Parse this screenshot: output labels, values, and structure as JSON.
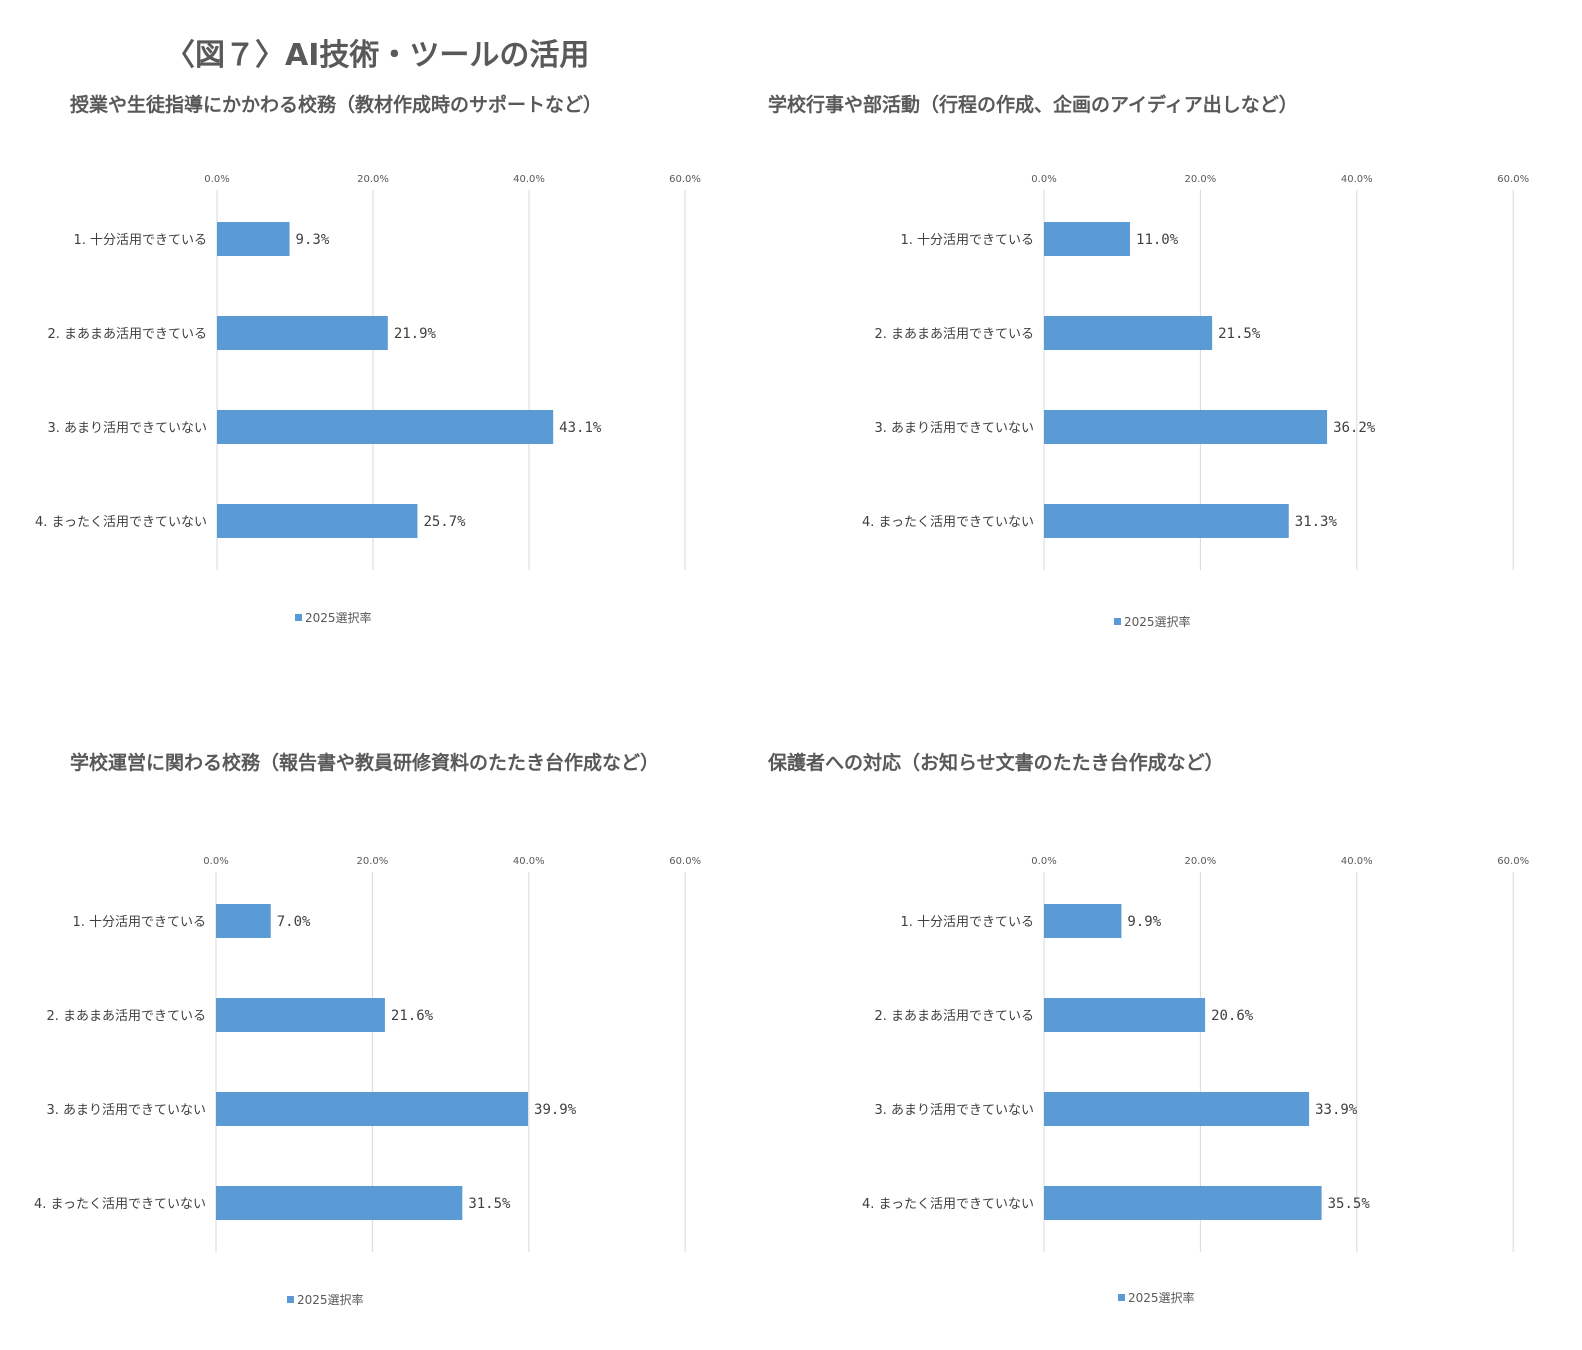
{
  "figure_title": "〈図７〉AI技術・ツールの活用",
  "colors": {
    "bar": "#5b9bd5",
    "grid": "#d9d9d9",
    "text": "#595959"
  },
  "chart_data": [
    {
      "type": "bar",
      "orientation": "horizontal",
      "title": "授業や生徒指導にかかわる校務（教材作成時のサポートなど）",
      "categories": [
        "1.  十分活用できている",
        "2.  まあまあ活用できている",
        "3.  あまり活用できていない",
        "4.  まったく活用できていない"
      ],
      "series": [
        {
          "name": "2025選択率",
          "values": [
            9.3,
            21.9,
            43.1,
            25.7
          ],
          "labels": [
            "9.3%",
            "21.9%",
            "43.1%",
            "25.7%"
          ]
        }
      ],
      "xticks": [
        "0.0%",
        "20.0%",
        "40.0%",
        "60.0%"
      ],
      "xlim": [
        0,
        60
      ],
      "grid": true,
      "legend_position": "bottom"
    },
    {
      "type": "bar",
      "orientation": "horizontal",
      "title": "学校行事や部活動（行程の作成、企画のアイディア出しなど）",
      "categories": [
        "1.  十分活用できている",
        "2.  まあまあ活用できている",
        "3.  あまり活用できていない",
        "4.  まったく活用できていない"
      ],
      "series": [
        {
          "name": "2025選択率",
          "values": [
            11.0,
            21.5,
            36.2,
            31.3
          ],
          "labels": [
            "11.0%",
            "21.5%",
            "36.2%",
            "31.3%"
          ]
        }
      ],
      "xticks": [
        "0.0%",
        "20.0%",
        "40.0%",
        "60.0%"
      ],
      "xlim": [
        0,
        60
      ],
      "grid": true,
      "legend_position": "bottom"
    },
    {
      "type": "bar",
      "orientation": "horizontal",
      "title": "学校運営に関わる校務（報告書や教員研修資料のたたき台作成など）",
      "categories": [
        "1.  十分活用できている",
        "2.  まあまあ活用できている",
        "3.  あまり活用できていない",
        "4.  まったく活用できていない"
      ],
      "series": [
        {
          "name": "2025選択率",
          "values": [
            7.0,
            21.6,
            39.9,
            31.5
          ],
          "labels": [
            "7.0%",
            "21.6%",
            "39.9%",
            "31.5%"
          ]
        }
      ],
      "xticks": [
        "0.0%",
        "20.0%",
        "40.0%",
        "60.0%"
      ],
      "xlim": [
        0,
        60
      ],
      "grid": true,
      "legend_position": "bottom"
    },
    {
      "type": "bar",
      "orientation": "horizontal",
      "title": "保護者への対応（お知らせ文書のたたき台作成など）",
      "categories": [
        "1.  十分活用できている",
        "2.  まあまあ活用できている",
        "3.  あまり活用できていない",
        "4.  まったく活用できていない"
      ],
      "series": [
        {
          "name": "2025選択率",
          "values": [
            9.9,
            20.6,
            33.9,
            35.5
          ],
          "labels": [
            "9.9%",
            "20.6%",
            "33.9%",
            "35.5%"
          ]
        }
      ],
      "xticks": [
        "0.0%",
        "20.0%",
        "40.0%",
        "60.0%"
      ],
      "xlim": [
        0,
        60
      ],
      "grid": true,
      "legend_position": "bottom"
    }
  ]
}
